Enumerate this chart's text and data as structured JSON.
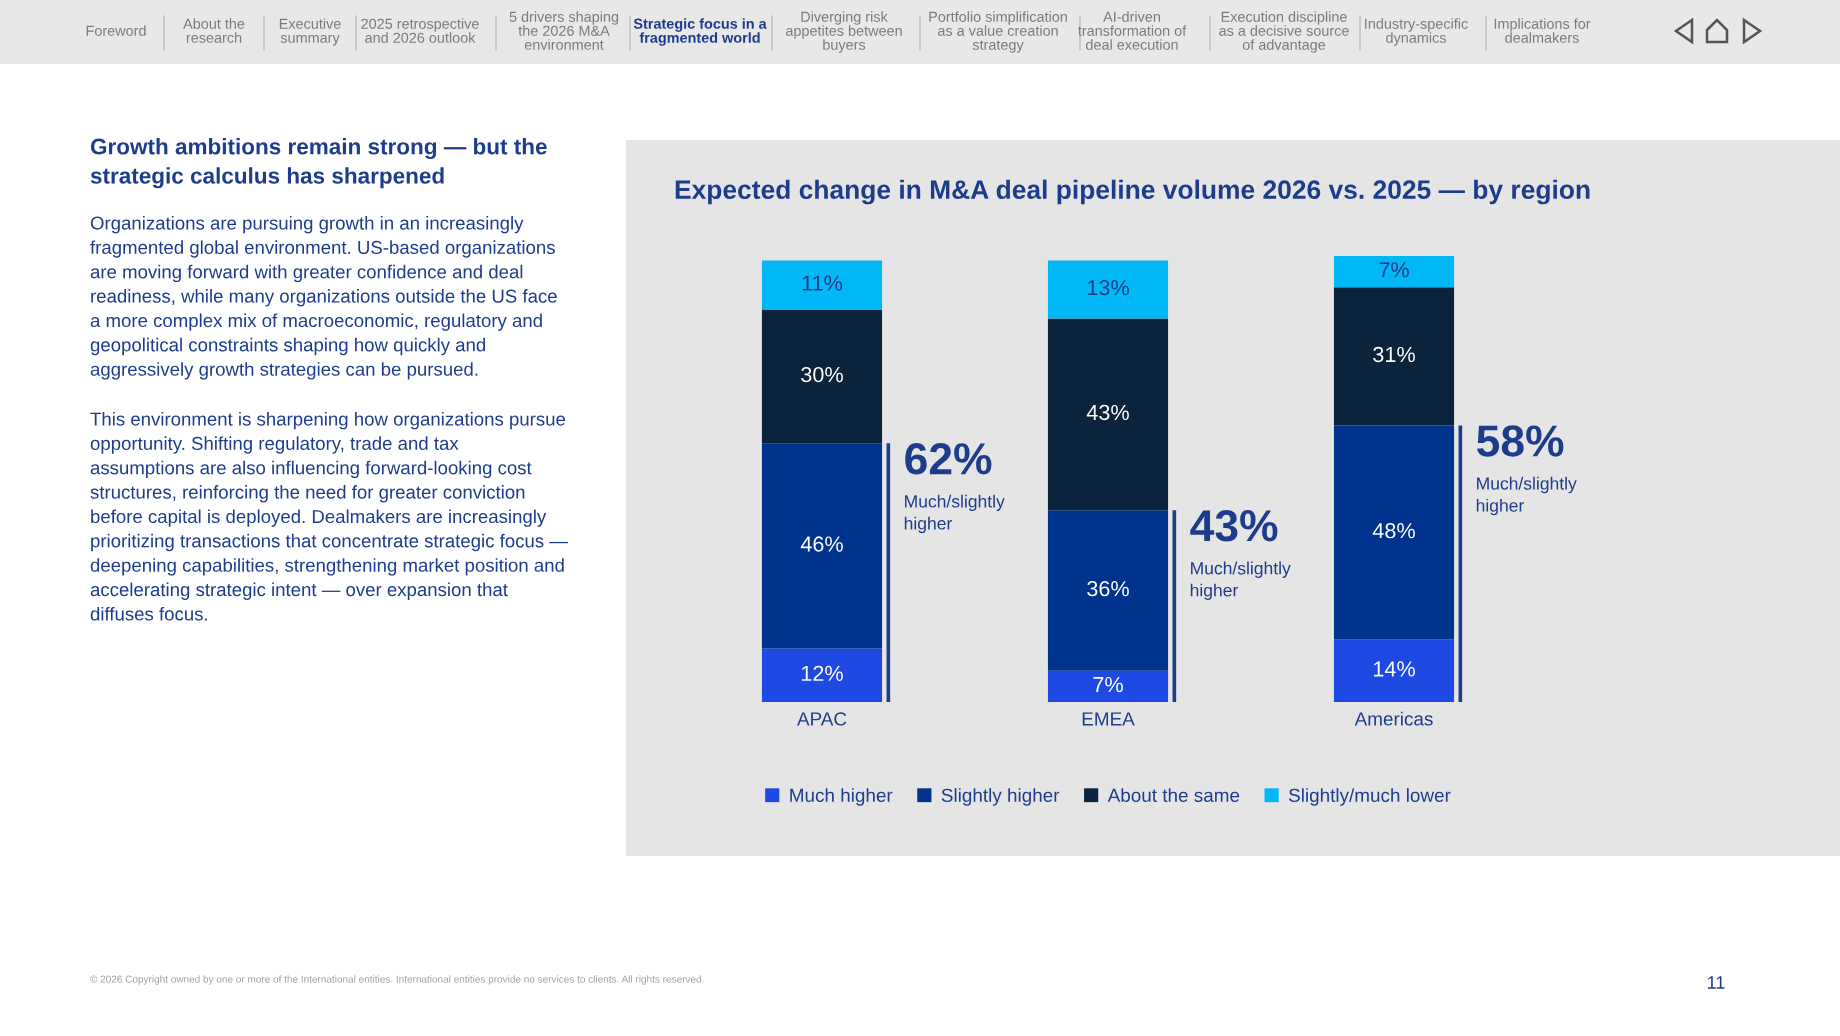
{
  "chart_data": {
    "type": "bar",
    "stacked": true,
    "title": "Expected change in M&A deal pipeline volume 2026 vs. 2025 — by region",
    "categories": [
      "APAC",
      "EMEA",
      "Americas"
    ],
    "series": [
      {
        "name": "Much higher",
        "color": "#1e49e2",
        "values": [
          12,
          7,
          14
        ],
        "value_labels": [
          "12%",
          "7%",
          "14%"
        ]
      },
      {
        "name": "Slightly higher",
        "color": "#00338d",
        "values": [
          46,
          36,
          48
        ],
        "value_labels": [
          "46%",
          "36%",
          "48%"
        ]
      },
      {
        "name": "About the same",
        "color": "#0c233c",
        "values": [
          30,
          43,
          31
        ],
        "value_labels": [
          "30%",
          "43%",
          "31%"
        ]
      },
      {
        "name": "Slightly/much lower",
        "color": "#00b8f5",
        "values": [
          11,
          13,
          7
        ],
        "value_labels": [
          "11%",
          "13%",
          "7%"
        ]
      }
    ],
    "legend": "bottom",
    "annotations": [
      "Foreword",
      "About the\nresearch",
      "Executive\nsummary",
      "2025 retrospective\nand 2026 outlook",
      "5 drivers shaping\nthe 2026 M&A\nenvironment",
      "Strategic focus in a\nfragmented world",
      "Diverging risk\nappetites between\nbuyers",
      "Portfolio simplification\nas a value creation\nstrategy",
      "AI-driven\ntransformation of\ndeal execution",
      "Execution discipline\nas a decisive source\nof advantage",
      "Industry-specific\ndynamics",
      "Implications for\ndealmakers",
      "Growth ambitions remain strong — but the\nstrategic calculus has sharpened",
      "Organizations are pursuing growth in an increasingly\nfragmented global environment. US-based organizations\nare moving forward with greater confidence and deal\nreadiness, while many organizations outside the US face\na more complex mix of macroeconomic, regulatory and\ngeopolitical constraints shaping how quickly and\naggressively growth strategies can be pursued.",
      "This environment is sharpening how organizations pursue\nopportunity. Shifting regulatory, trade and tax\nassumptions are also influencing forward-looking cost\nstructures, reinforcing the need for greater conviction\nbefore capital is deployed. Dealmakers are increasingly\nprioritizing transactions that concentrate strategic focus —\ndeepening capabilities, strengthening market position and\naccelerating strategic intent — over expansion that\ndiffuses focus.",
      "© 2026 Copyright owned by one or more of the International entities. International entities provide no services to clients. All rights reserved.",
      "11",
      {
        "text": "62%\nMuch/slightly\nhigher",
        "x": "APAC",
        "y": 58
      },
      {
        "text": "43%\nMuch/slightly\nhigher",
        "x": "EMEA",
        "y": 43
      },
      {
        "text": "58%\nMuch/slightly\nhigher",
        "x": "Americas",
        "y": 62
      }
    ]
  }
}
